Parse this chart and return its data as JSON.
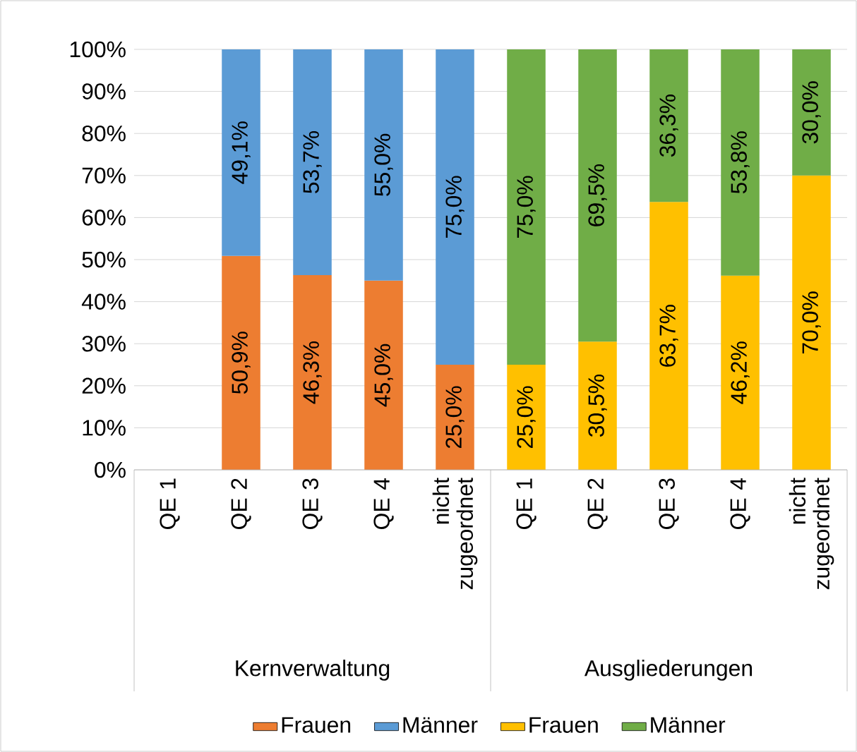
{
  "chart_data": {
    "type": "bar",
    "stacked": true,
    "grid": "y",
    "legend": "bottom",
    "categories": [
      "QE 1",
      "QE 2",
      "QE 3",
      "QE 4",
      "nicht zugeordnet",
      "QE 1",
      "QE 2",
      "QE 3",
      "QE 4",
      "nicht zugeordnet"
    ],
    "annotations": [
      "Kernverwaltung",
      "Ausgliederungen"
    ],
    "ylim": [
      0,
      100
    ],
    "yticks": [
      {
        "value": 0,
        "label": "0%"
      },
      {
        "value": 10,
        "label": "10%"
      },
      {
        "value": 20,
        "label": "20%"
      },
      {
        "value": 30,
        "label": "30%"
      },
      {
        "value": 40,
        "label": "40%"
      },
      {
        "value": 50,
        "label": "50%"
      },
      {
        "value": 60,
        "label": "60%"
      },
      {
        "value": 70,
        "label": "70%"
      },
      {
        "value": 80,
        "label": "80%"
      },
      {
        "value": 90,
        "label": "90%"
      },
      {
        "value": 100,
        "label": "100%"
      }
    ],
    "series": [
      {
        "name": "Frauen",
        "color": "#ed7d31",
        "values": [
          null,
          50.9,
          46.3,
          45.0,
          25.0,
          null,
          null,
          null,
          null,
          null
        ],
        "value_labels": [
          null,
          "50,9%",
          "46,3%",
          "45,0%",
          "25,0%",
          null,
          null,
          null,
          null,
          null
        ]
      },
      {
        "name": "Männer",
        "color": "#5b9bd5",
        "values": [
          null,
          49.1,
          53.7,
          55.0,
          75.0,
          null,
          null,
          null,
          null,
          null
        ],
        "value_labels": [
          null,
          "49,1%",
          "53,7%",
          "55,0%",
          "75,0%",
          null,
          null,
          null,
          null,
          null
        ]
      },
      {
        "name": "Frauen",
        "color": "#ffc000",
        "values": [
          null,
          null,
          null,
          null,
          null,
          25.0,
          30.5,
          63.7,
          46.2,
          70.0
        ],
        "value_labels": [
          null,
          null,
          null,
          null,
          null,
          "25,0%",
          "30,5%",
          "63,7%",
          "46,2%",
          "70,0%"
        ]
      },
      {
        "name": "Männer",
        "color": "#70ad47",
        "values": [
          null,
          null,
          null,
          null,
          null,
          75.0,
          69.5,
          36.3,
          53.8,
          30.0
        ],
        "value_labels": [
          null,
          null,
          null,
          null,
          null,
          "75,0%",
          "69,5%",
          "36,3%",
          "53,8%",
          "30,0%"
        ]
      }
    ]
  }
}
